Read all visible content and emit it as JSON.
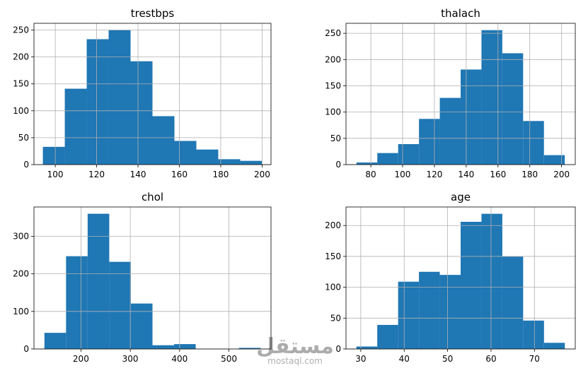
{
  "watermark": {
    "logo_text": "مستقل",
    "domain": "mostaql.com"
  },
  "colors": {
    "bar": "#1f77b4",
    "grid": "#b0b0b0",
    "axis": "#000000",
    "background": "#ffffff"
  },
  "chart_data": [
    {
      "type": "bar",
      "title": "trestbps",
      "grid": true,
      "xlim": [
        89.7,
        204.3
      ],
      "ylim": [
        0,
        262.5
      ],
      "xticks": [
        100,
        120,
        140,
        160,
        180,
        200
      ],
      "yticks": [
        0,
        50,
        100,
        150,
        200,
        250
      ],
      "bins": [
        {
          "x0": 94.0,
          "x1": 104.6,
          "count": 33
        },
        {
          "x0": 104.6,
          "x1": 115.2,
          "count": 141
        },
        {
          "x0": 115.2,
          "x1": 125.8,
          "count": 233
        },
        {
          "x0": 125.8,
          "x1": 136.4,
          "count": 250
        },
        {
          "x0": 136.4,
          "x1": 147.0,
          "count": 192
        },
        {
          "x0": 147.0,
          "x1": 157.6,
          "count": 90
        },
        {
          "x0": 157.6,
          "x1": 168.2,
          "count": 44
        },
        {
          "x0": 168.2,
          "x1": 178.8,
          "count": 28
        },
        {
          "x0": 178.8,
          "x1": 189.4,
          "count": 10
        },
        {
          "x0": 189.4,
          "x1": 200.0,
          "count": 7
        }
      ]
    },
    {
      "type": "bar",
      "title": "thalach",
      "grid": true,
      "xlim": [
        64.4,
        208.6
      ],
      "ylim": [
        0,
        269
      ],
      "xticks": [
        80,
        100,
        120,
        140,
        160,
        180,
        200
      ],
      "yticks": [
        0,
        50,
        100,
        150,
        200,
        250
      ],
      "bins": [
        {
          "x0": 71.0,
          "x1": 84.1,
          "count": 4
        },
        {
          "x0": 84.1,
          "x1": 97.2,
          "count": 22
        },
        {
          "x0": 97.2,
          "x1": 110.3,
          "count": 39
        },
        {
          "x0": 110.3,
          "x1": 123.4,
          "count": 87
        },
        {
          "x0": 123.4,
          "x1": 136.5,
          "count": 127
        },
        {
          "x0": 136.5,
          "x1": 149.6,
          "count": 181
        },
        {
          "x0": 149.6,
          "x1": 162.7,
          "count": 256
        },
        {
          "x0": 162.7,
          "x1": 175.8,
          "count": 212
        },
        {
          "x0": 175.8,
          "x1": 188.9,
          "count": 83
        },
        {
          "x0": 188.9,
          "x1": 202.0,
          "count": 18
        }
      ]
    },
    {
      "type": "bar",
      "title": "chol",
      "grid": true,
      "xlim": [
        104.8,
        585.2
      ],
      "ylim": [
        0,
        378
      ],
      "xticks": [
        200,
        300,
        400,
        500
      ],
      "yticks": [
        0,
        100,
        200,
        300
      ],
      "bins": [
        {
          "x0": 126.0,
          "x1": 169.8,
          "count": 43
        },
        {
          "x0": 169.8,
          "x1": 213.6,
          "count": 247
        },
        {
          "x0": 213.6,
          "x1": 257.4,
          "count": 360
        },
        {
          "x0": 257.4,
          "x1": 301.2,
          "count": 232
        },
        {
          "x0": 301.2,
          "x1": 345.0,
          "count": 121
        },
        {
          "x0": 345.0,
          "x1": 388.8,
          "count": 10
        },
        {
          "x0": 388.8,
          "x1": 432.6,
          "count": 13
        },
        {
          "x0": 432.6,
          "x1": 476.4,
          "count": 0
        },
        {
          "x0": 476.4,
          "x1": 520.2,
          "count": 0
        },
        {
          "x0": 520.2,
          "x1": 564.0,
          "count": 3
        }
      ]
    },
    {
      "type": "bar",
      "title": "age",
      "grid": true,
      "xlim": [
        26.6,
        79.4
      ],
      "ylim": [
        0,
        230
      ],
      "xticks": [
        30,
        40,
        50,
        60,
        70
      ],
      "yticks": [
        0,
        50,
        100,
        150,
        200
      ],
      "bins": [
        {
          "x0": 29.0,
          "x1": 33.8,
          "count": 4
        },
        {
          "x0": 33.8,
          "x1": 38.6,
          "count": 39
        },
        {
          "x0": 38.6,
          "x1": 43.4,
          "count": 109
        },
        {
          "x0": 43.4,
          "x1": 48.2,
          "count": 125
        },
        {
          "x0": 48.2,
          "x1": 53.0,
          "count": 120
        },
        {
          "x0": 53.0,
          "x1": 57.8,
          "count": 206
        },
        {
          "x0": 57.8,
          "x1": 62.6,
          "count": 219
        },
        {
          "x0": 62.6,
          "x1": 67.4,
          "count": 150
        },
        {
          "x0": 67.4,
          "x1": 72.2,
          "count": 46
        },
        {
          "x0": 72.2,
          "x1": 77.0,
          "count": 10
        }
      ]
    }
  ]
}
